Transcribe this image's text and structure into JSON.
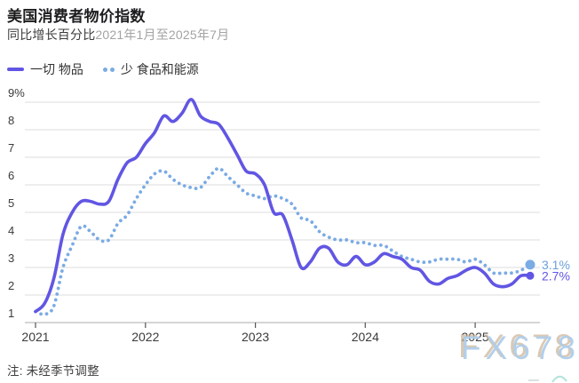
{
  "header": {
    "title": "美国消费者物价指数",
    "subtitle_dark": "同比增长百分比",
    "subtitle_light": "2021年1月至2025年7月"
  },
  "legend": [
    {
      "label": "一切 物品",
      "style": "solid",
      "color": "#6156e3"
    },
    {
      "label": "少 食品和能源",
      "style": "dotted",
      "color": "#7babe4"
    }
  ],
  "footnote": "注: 未经季节调整",
  "watermark": "FX678",
  "chart_data": {
    "type": "line",
    "title": "美国消费者物价指数",
    "subtitle": "同比增长百分比2021年1月至2025年7月",
    "note": "注: 未经季节调整",
    "x_monthly_start": "2021-01",
    "x_monthly_end": "2025-07",
    "x_tick_labels": [
      "2021",
      "2022",
      "2023",
      "2024",
      "2025"
    ],
    "y_ticks": [
      1,
      2,
      3,
      4,
      5,
      6,
      7,
      8,
      9
    ],
    "y_top_tick_label": "9%",
    "ylim": [
      1,
      9
    ],
    "grid": true,
    "legend_position": "top-left",
    "colors": {
      "grid": "#dcdcdc",
      "axis": "#ababab",
      "tick_text": "#3b3b3b",
      "tick_mark": "#555555"
    },
    "series": [
      {
        "name": "一切 物品",
        "style": "solid",
        "color": "#6156e3",
        "label_color": "#6156e3",
        "end_label": "2.7%",
        "values": [
          1.4,
          1.7,
          2.6,
          4.2,
          5.0,
          5.4,
          5.4,
          5.3,
          5.4,
          6.2,
          6.8,
          7.0,
          7.5,
          7.9,
          8.5,
          8.3,
          8.6,
          9.1,
          8.5,
          8.3,
          8.2,
          7.7,
          7.1,
          6.5,
          6.4,
          6.0,
          5.0,
          4.9,
          4.0,
          3.0,
          3.2,
          3.7,
          3.7,
          3.2,
          3.1,
          3.4,
          3.1,
          3.2,
          3.5,
          3.4,
          3.3,
          3.0,
          2.9,
          2.5,
          2.4,
          2.6,
          2.7,
          2.9,
          3.0,
          2.8,
          2.4,
          2.3,
          2.4,
          2.7,
          2.7
        ]
      },
      {
        "name": "少 食品和能源",
        "style": "dotted",
        "color": "#7babe4",
        "label_color": "#6ba0da",
        "end_label": "3.1%",
        "values": [
          1.4,
          1.3,
          1.6,
          3.0,
          3.8,
          4.5,
          4.3,
          4.0,
          4.0,
          4.6,
          4.9,
          5.5,
          6.0,
          6.4,
          6.5,
          6.2,
          6.0,
          5.9,
          5.9,
          6.3,
          6.6,
          6.3,
          6.0,
          5.7,
          5.6,
          5.5,
          5.6,
          5.5,
          5.3,
          4.8,
          4.7,
          4.3,
          4.1,
          4.0,
          4.0,
          3.9,
          3.9,
          3.8,
          3.8,
          3.6,
          3.4,
          3.3,
          3.2,
          3.2,
          3.3,
          3.3,
          3.3,
          3.2,
          3.3,
          3.1,
          2.8,
          2.8,
          2.8,
          2.9,
          3.1
        ]
      }
    ]
  }
}
